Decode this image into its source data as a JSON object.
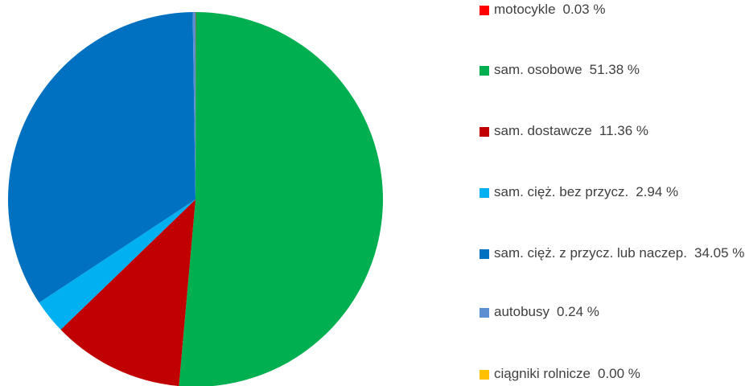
{
  "chart_data": {
    "type": "pie",
    "categories": [
      "motocykle",
      "sam. osobowe",
      "sam. dostawcze",
      "sam. cięż. bez przycz.",
      "sam. cięż. z przycz. lub naczep.",
      "autobusy",
      "ciągniki rolnicze"
    ],
    "values": [
      0.03,
      51.38,
      11.36,
      2.94,
      34.05,
      0.24,
      0.0
    ],
    "value_labels": [
      "0.03 %",
      "51.38 %",
      "11.36 %",
      "2.94 %",
      "34.05 %",
      "0.24 %",
      "0.00 %"
    ],
    "colors": [
      "#ff0000",
      "#00b050",
      "#c00000",
      "#00b0f0",
      "#0070c0",
      "#5b8fd1",
      "#ffc000"
    ],
    "legend": "right"
  }
}
